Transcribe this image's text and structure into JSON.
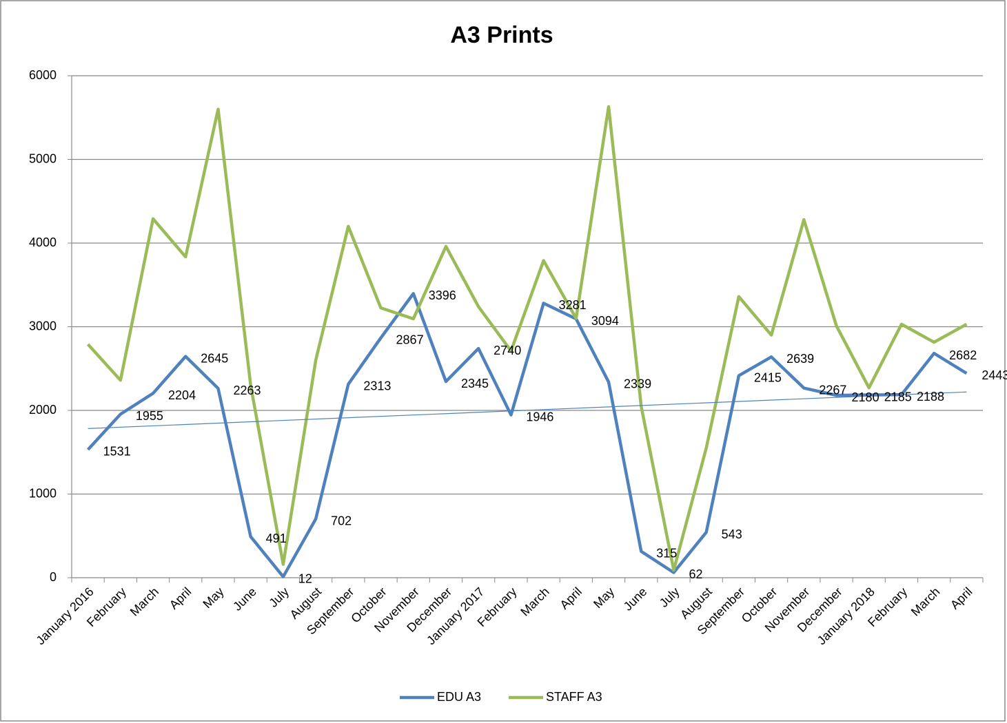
{
  "chart_data": {
    "type": "line",
    "title": "A3 Prints",
    "categories": [
      "January 2016",
      "February",
      "March",
      "April",
      "May",
      "June",
      "July",
      "August",
      "September",
      "October",
      "November",
      "December",
      "January 2017",
      "February",
      "March",
      "April",
      "May",
      "June",
      "July",
      "August",
      "September",
      "October",
      "November",
      "December",
      "January 2018",
      "February",
      "March",
      "April"
    ],
    "series": [
      {
        "name": "EDU A3",
        "color": "#4f81bd",
        "values": [
          1531,
          1955,
          2204,
          2645,
          2263,
          491,
          12,
          702,
          2313,
          2867,
          3396,
          2345,
          2740,
          1946,
          3281,
          3094,
          2339,
          315,
          62,
          543,
          2415,
          2639,
          2267,
          2180,
          2185,
          2188,
          2682,
          2443
        ]
      },
      {
        "name": "STAFF A3",
        "color": "#9bbb59",
        "values": [
          2790,
          2360,
          4290,
          3835,
          5600,
          2300,
          160,
          2600,
          4200,
          3225,
          3095,
          3960,
          3240,
          2710,
          3790,
          3100,
          5630,
          2050,
          90,
          1550,
          3360,
          2900,
          4280,
          3010,
          2270,
          3030,
          2815,
          3030
        ]
      }
    ],
    "ylim": [
      0,
      6000
    ],
    "yticks": [
      0,
      1000,
      2000,
      3000,
      4000,
      5000,
      6000
    ],
    "grid": true,
    "legend": "bottom",
    "trendline": "linear"
  }
}
